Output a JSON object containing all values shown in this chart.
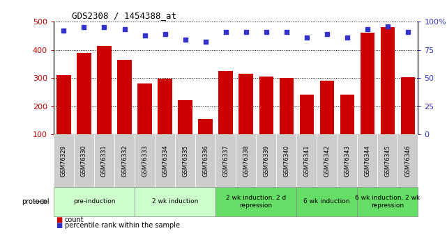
{
  "title": "GDS2308 / 1454388_at",
  "samples": [
    "GSM76329",
    "GSM76330",
    "GSM76331",
    "GSM76332",
    "GSM76333",
    "GSM76334",
    "GSM76335",
    "GSM76336",
    "GSM76337",
    "GSM76338",
    "GSM76339",
    "GSM76340",
    "GSM76341",
    "GSM76342",
    "GSM76343",
    "GSM76344",
    "GSM76345",
    "GSM76346"
  ],
  "counts": [
    310,
    390,
    415,
    365,
    280,
    298,
    222,
    155,
    325,
    315,
    305,
    300,
    240,
    290,
    242,
    460,
    480,
    304
  ],
  "percentiles": [
    92,
    95,
    95,
    93,
    88,
    89,
    84,
    82,
    91,
    91,
    91,
    91,
    86,
    89,
    86,
    93,
    96,
    91
  ],
  "groups": [
    {
      "label": "pre-induction",
      "start": 0,
      "end": 4,
      "color": "#ccffcc"
    },
    {
      "label": "2 wk induction",
      "start": 4,
      "end": 8,
      "color": "#ccffcc"
    },
    {
      "label": "2 wk induction, 2 d\nrepression",
      "start": 8,
      "end": 12,
      "color": "#66dd66"
    },
    {
      "label": "6 wk induction",
      "start": 12,
      "end": 15,
      "color": "#66dd66"
    },
    {
      "label": "6 wk induction, 2 wk\nrepression",
      "start": 15,
      "end": 18,
      "color": "#66dd66"
    }
  ],
  "ylim_left": [
    100,
    500
  ],
  "ylim_right": [
    0,
    100
  ],
  "yticks_left": [
    100,
    200,
    300,
    400,
    500
  ],
  "yticks_right": [
    0,
    25,
    50,
    75,
    100
  ],
  "bar_color": "#cc0000",
  "dot_color": "#3333cc",
  "bg_color": "#ffffff",
  "grid_color": "#000000",
  "left_tick_color": "#cc0000",
  "right_tick_color": "#3333cc",
  "bar_width": 0.7,
  "sample_label_bg": "#cccccc",
  "sample_label_fontsize": 6,
  "protocol_label": "protocol",
  "legend_count": "count",
  "legend_pct": "percentile rank within the sample"
}
